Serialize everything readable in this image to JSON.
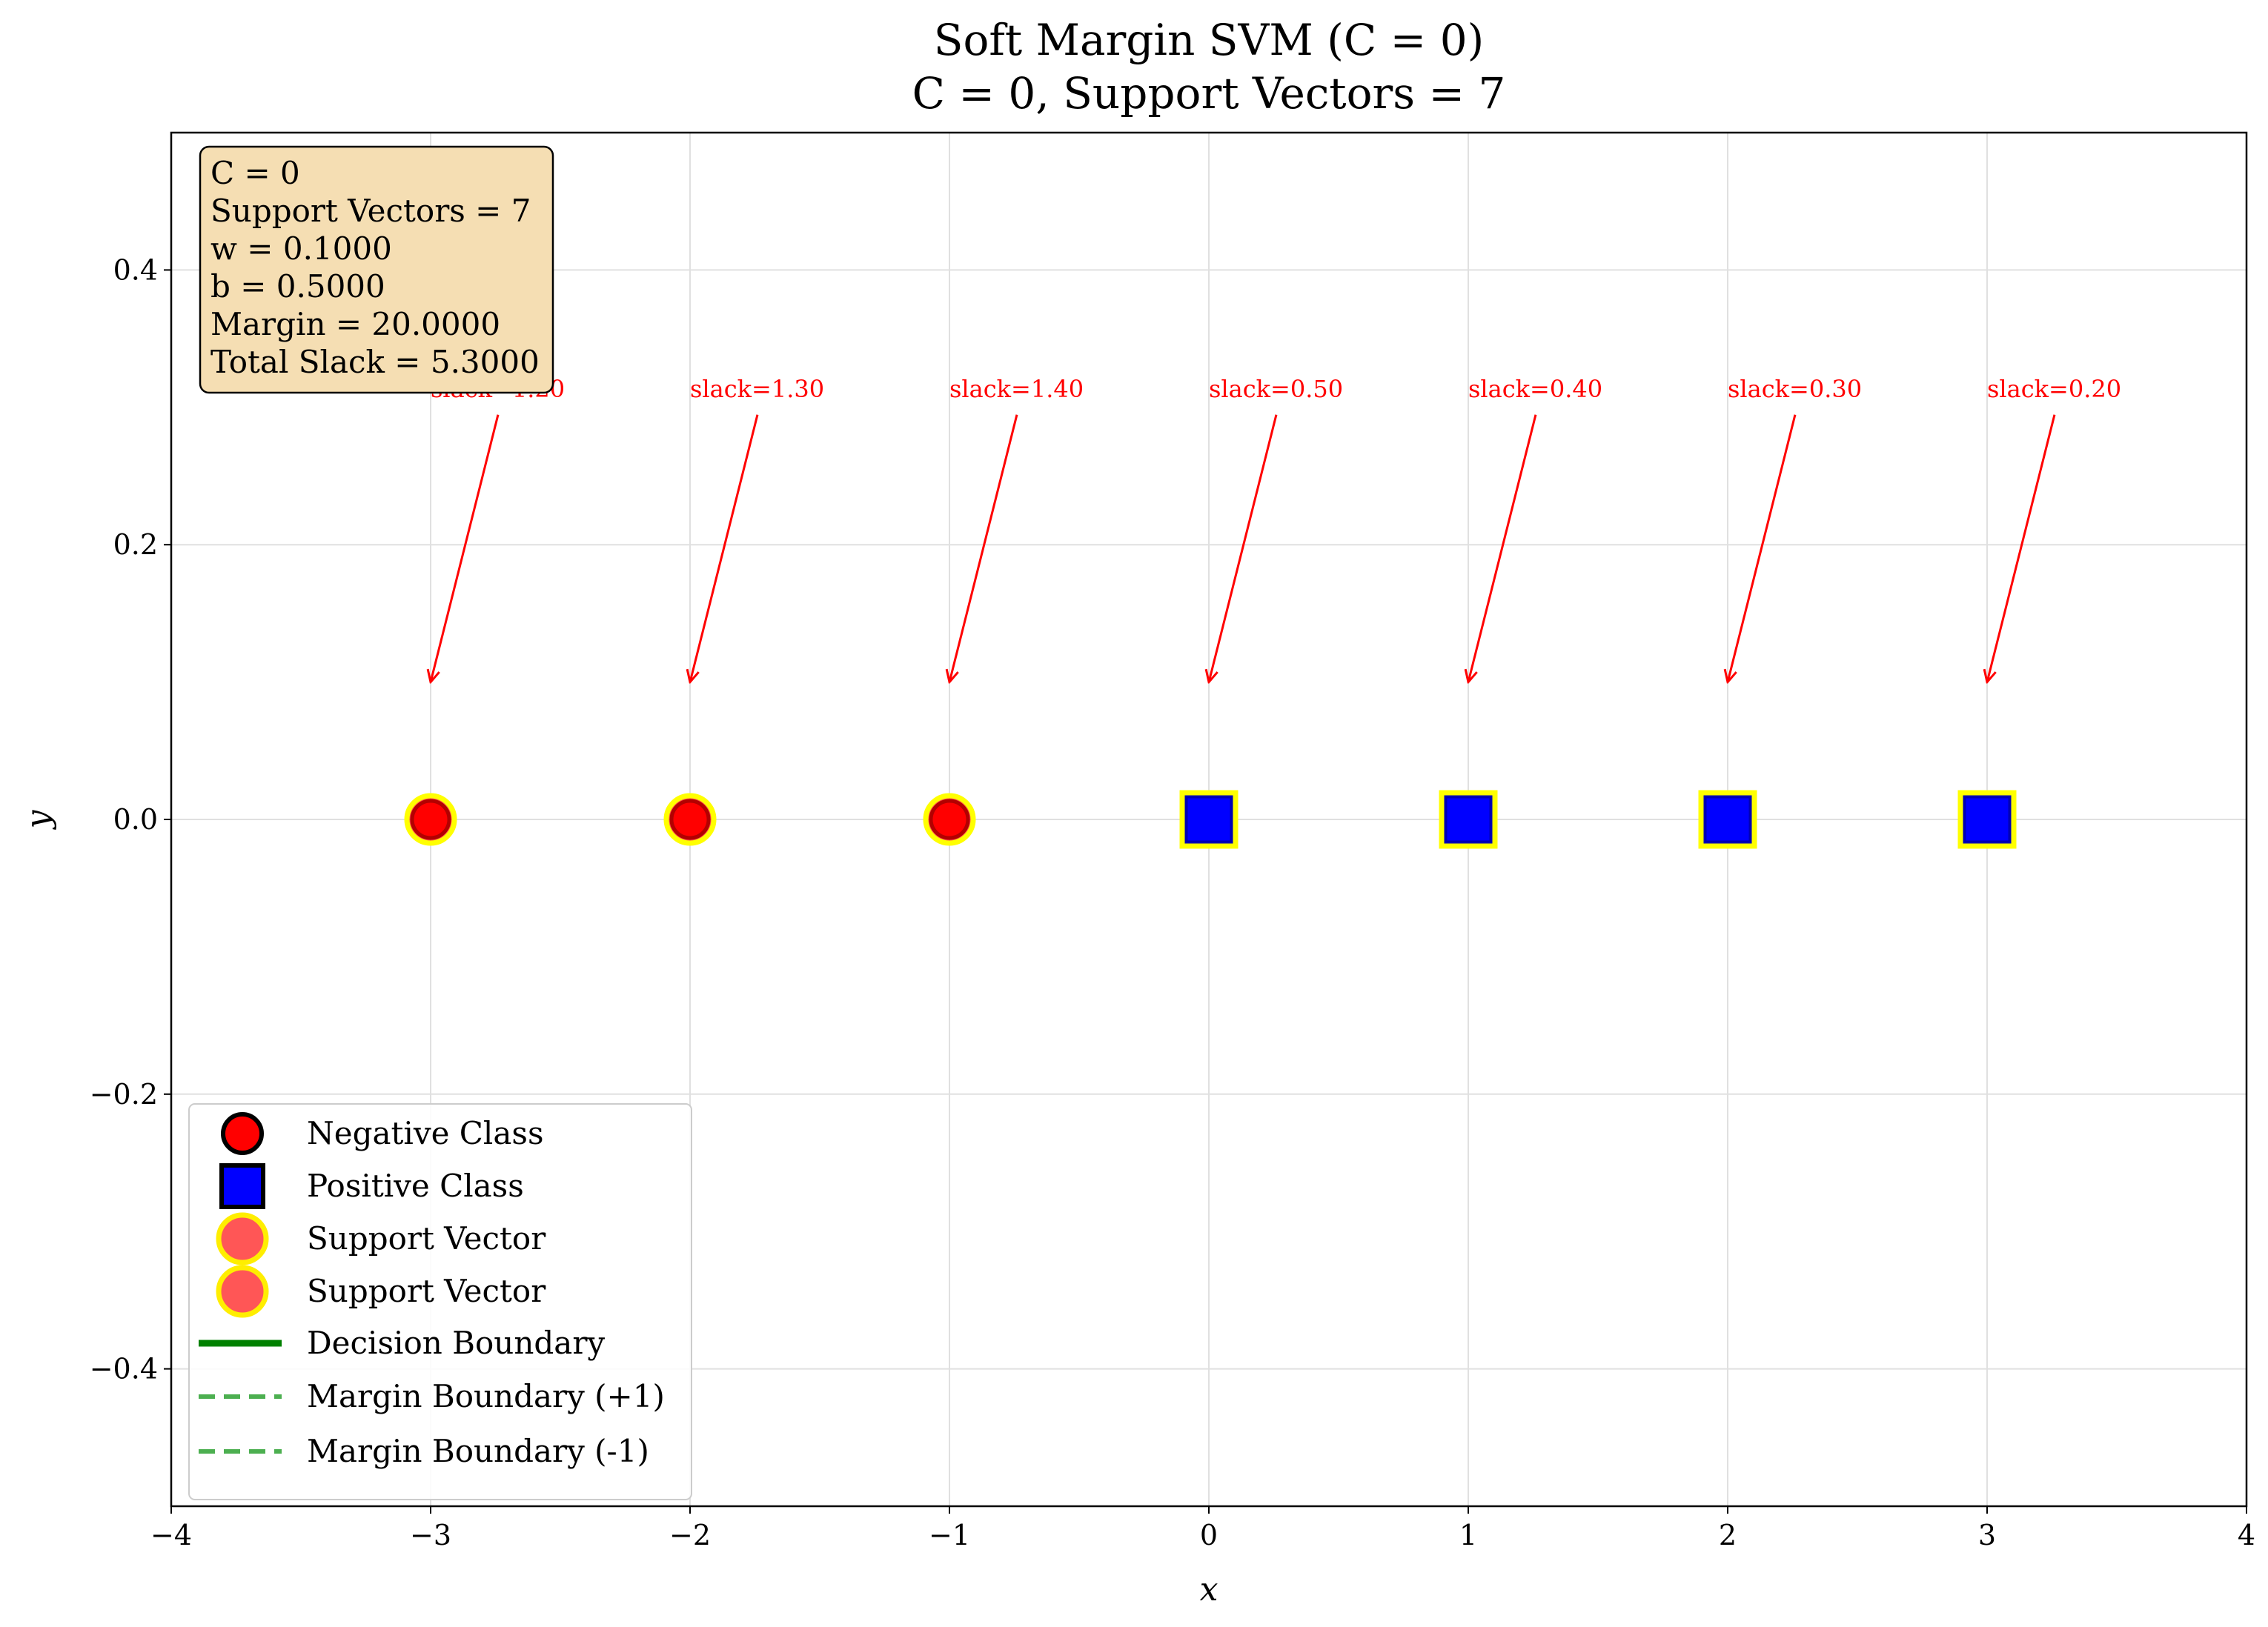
{
  "chart_data": {
    "type": "scatter",
    "title": "Soft Margin SVM (C = 0)",
    "subtitle": "C = 0, Support Vectors = 7",
    "xlabel": "x",
    "ylabel": "y",
    "xlim": [
      -4,
      4
    ],
    "ylim": [
      -0.5,
      0.5
    ],
    "xticks": [
      -4,
      -3,
      -2,
      -1,
      0,
      1,
      2,
      3,
      4
    ],
    "xtick_labels": [
      "−4",
      "−3",
      "−2",
      "−1",
      "0",
      "1",
      "2",
      "3",
      "4"
    ],
    "yticks": [
      -0.4,
      -0.2,
      0.0,
      0.2,
      0.4
    ],
    "ytick_labels": [
      "−0.4",
      "−0.2",
      "0.0",
      "0.2",
      "0.4"
    ],
    "grid": true,
    "series": [
      {
        "name": "Negative Class",
        "marker": "circle",
        "color": "#ff0000",
        "x": [
          -3,
          -2,
          -1
        ],
        "y": [
          0,
          0,
          0
        ]
      },
      {
        "name": "Positive Class",
        "marker": "square",
        "color": "#0000ff",
        "x": [
          0,
          1,
          2,
          3
        ],
        "y": [
          0,
          0,
          0,
          0
        ]
      }
    ],
    "support_vectors": {
      "x": [
        -3,
        -2,
        -1,
        0,
        1,
        2,
        3
      ],
      "y": [
        0,
        0,
        0,
        0,
        0,
        0,
        0
      ],
      "edge_color": "#ffff00"
    },
    "annotations": [
      {
        "text": "slack=1.20",
        "x": -3,
        "y": 0.1,
        "text_x": -3,
        "text_y": 0.3
      },
      {
        "text": "slack=1.30",
        "x": -2,
        "y": 0.1,
        "text_x": -2,
        "text_y": 0.3
      },
      {
        "text": "slack=1.40",
        "x": -1,
        "y": 0.1,
        "text_x": -1,
        "text_y": 0.3
      },
      {
        "text": "slack=0.50",
        "x": 0,
        "y": 0.1,
        "text_x": 0,
        "text_y": 0.3
      },
      {
        "text": "slack=0.40",
        "x": 1,
        "y": 0.1,
        "text_x": 1,
        "text_y": 0.3
      },
      {
        "text": "slack=0.30",
        "x": 2,
        "y": 0.1,
        "text_x": 2,
        "text_y": 0.3
      },
      {
        "text": "slack=0.20",
        "x": 3,
        "y": 0.1,
        "text_x": 3,
        "text_y": 0.3
      }
    ],
    "info_box": {
      "lines": [
        "C = 0",
        "Support Vectors = 7",
        "w = 0.1000",
        "b = 0.5000",
        "Margin = 20.0000",
        "Total Slack = 5.3000"
      ],
      "background": "#f5deb3"
    },
    "legend": {
      "position": "lower-left",
      "entries": [
        {
          "label": "Negative Class",
          "kind": "circle",
          "color": "#ff0000"
        },
        {
          "label": "Positive Class",
          "kind": "square",
          "color": "#0000ff"
        },
        {
          "label": "Support Vector",
          "kind": "sv",
          "color": "#ff4444"
        },
        {
          "label": "Support Vector",
          "kind": "sv",
          "color": "#ff4444"
        },
        {
          "label": "Decision Boundary",
          "kind": "line-solid",
          "color": "#008000"
        },
        {
          "label": "Margin Boundary (+1)",
          "kind": "line-dashed",
          "color": "#4caf50"
        },
        {
          "label": "Margin Boundary (-1)",
          "kind": "line-dashed",
          "color": "#4caf50"
        }
      ]
    }
  }
}
